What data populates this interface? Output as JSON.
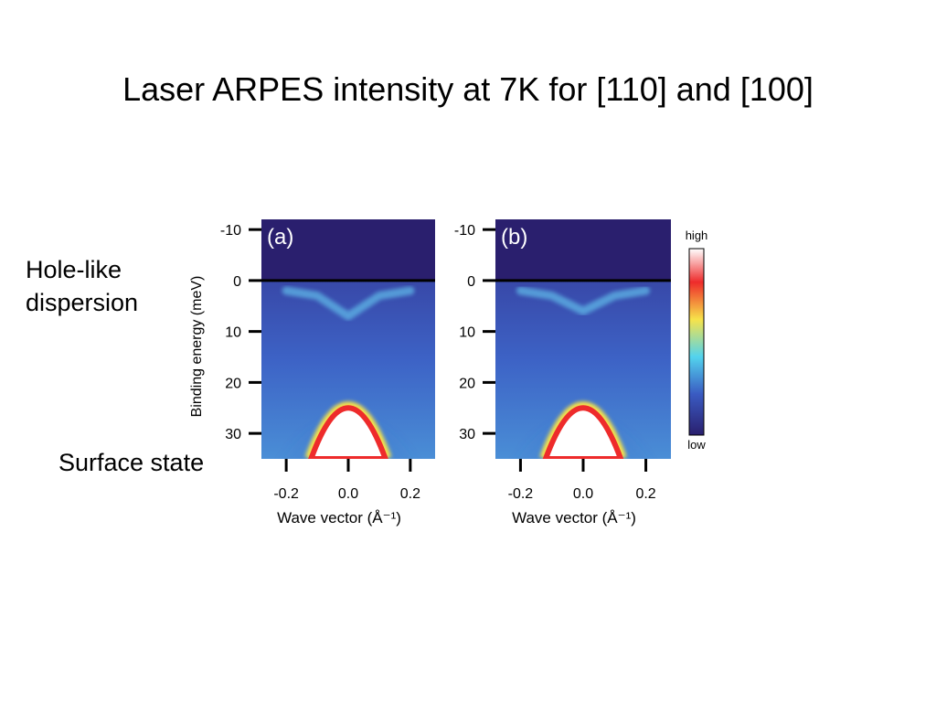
{
  "slide": {
    "title": "Laser ARPES intensity at 7K for [110] and [100]"
  },
  "annotations": {
    "hole_like_line1": "Hole-like",
    "hole_like_line2": "dispersion",
    "surface_state": "Surface state"
  },
  "chart_data": [
    {
      "type": "heatmap",
      "panel_label": "(a)",
      "xlabel": "Wave vector (Å⁻¹)",
      "ylabel": "Binding energy (meV)",
      "xlim": [
        -0.28,
        0.28
      ],
      "ylim": [
        -12,
        35
      ],
      "y_inverted": true,
      "x_ticks": [
        -0.2,
        0.0,
        0.2
      ],
      "x_tick_labels": [
        "-0.2",
        "0.0",
        "0.2"
      ],
      "y_ticks": [
        -10,
        0,
        10,
        20,
        30
      ],
      "y_tick_labels": [
        "-10",
        "0",
        "10",
        "20",
        "30"
      ],
      "fermi_level_meV": 0,
      "features": {
        "hole_like_band": {
          "x": [
            -0.2,
            -0.1,
            0.0,
            0.1,
            0.2
          ],
          "E_meV": [
            2,
            3,
            7,
            3,
            2
          ]
        },
        "surface_state": {
          "apex_meV": 25,
          "k_at_35meV": [
            -0.12,
            0.12
          ]
        }
      }
    },
    {
      "type": "heatmap",
      "panel_label": "(b)",
      "xlabel": "Wave vector (Å⁻¹)",
      "ylabel": "",
      "xlim": [
        -0.28,
        0.28
      ],
      "ylim": [
        -12,
        35
      ],
      "y_inverted": true,
      "x_ticks": [
        -0.2,
        0.0,
        0.2
      ],
      "x_tick_labels": [
        "-0.2",
        "0.0",
        "0.2"
      ],
      "y_ticks": [
        -10,
        0,
        10,
        20,
        30
      ],
      "y_tick_labels": [
        "-10",
        "0",
        "10",
        "20",
        "30"
      ],
      "fermi_level_meV": 0,
      "features": {
        "hole_like_band": {
          "x": [
            -0.2,
            -0.1,
            0.0,
            0.1,
            0.2
          ],
          "E_meV": [
            2,
            3,
            6,
            3,
            2
          ]
        },
        "surface_state": {
          "apex_meV": 25,
          "k_at_35meV": [
            -0.12,
            0.12
          ]
        }
      }
    }
  ],
  "colorbar": {
    "high_label": "high",
    "low_label": "low",
    "colors": [
      "#ffffff",
      "#ee2b2b",
      "#f7e34a",
      "#53d3ee",
      "#3a5bc2",
      "#2a1f6e"
    ]
  },
  "colors": {
    "empty_state": "#2a1f6e",
    "fermi_line": "#000000"
  }
}
